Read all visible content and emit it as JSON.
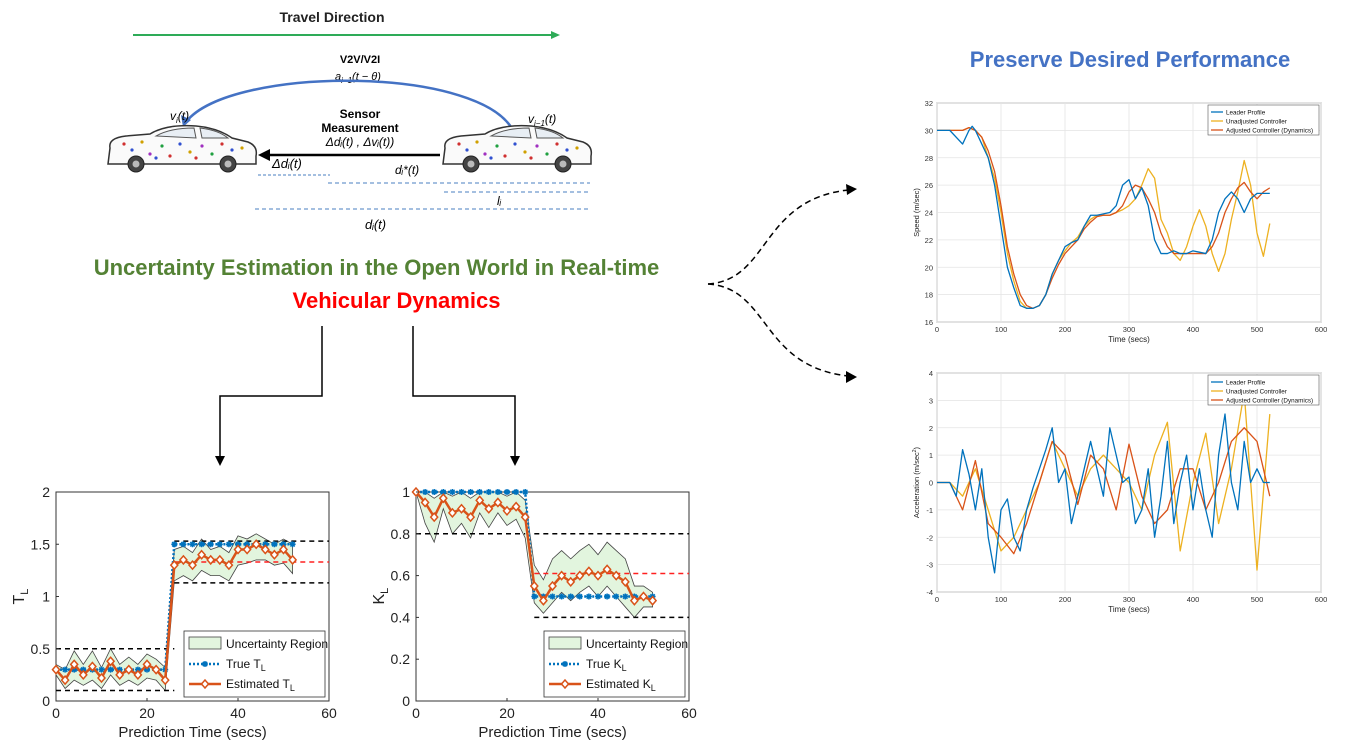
{
  "top": {
    "travel_direction": "Travel Direction",
    "v2v_label": "V2V/V2I",
    "a_label": "a",
    "a_sub": "i−1",
    "a_rest": "(t − θ)",
    "v_left": "v",
    "v_left_sub": "i",
    "v_left_rest": "(t)",
    "v_right": "v",
    "v_right_sub": "i−1",
    "v_right_rest": "(t)",
    "sensor_line1": "Sensor",
    "sensor_line2": "Measurement",
    "sensor_line3": "Δdᵢ(t) , Δvᵢ(t))",
    "delta_d": "Δdᵢ(t)",
    "d_star": "dᵢ*(t)",
    "l_label": "lᵢ",
    "d_label": "dᵢ(t)"
  },
  "headline": {
    "line1": "Uncertainty Estimation in the Open World in Real-time",
    "line2": "Vehicular Dynamics"
  },
  "right_title": "Preserve Desired Performance",
  "colors": {
    "green": "#548235",
    "red": "#ff0000",
    "blue": "#4472c4",
    "leader": "#0072bd",
    "unadjusted": "#edb120",
    "adjusted": "#d95319",
    "true_marker": "#0072bd",
    "estimated": "#d95319",
    "band": "#e2f5de"
  },
  "chart_data": [
    {
      "type": "line",
      "ylabel": "T",
      "ylabel_sub": "L",
      "xlabel": "Prediction Time (secs)",
      "xlim": [
        0,
        60
      ],
      "ylim": [
        0,
        2
      ],
      "xticks": [
        "0",
        "20",
        "40",
        "60"
      ],
      "yticks": [
        "0",
        "0.5",
        "1",
        "1.5",
        "2"
      ],
      "legend": {
        "band": "Uncertainty Region",
        "true": "True T",
        "true_sub": "L",
        "est": "Estimated T",
        "est_sub": "L"
      },
      "x": [
        0,
        2,
        4,
        6,
        8,
        10,
        12,
        14,
        16,
        18,
        20,
        22,
        24,
        26,
        28,
        30,
        32,
        34,
        36,
        38,
        40,
        42,
        44,
        46,
        48,
        50,
        52
      ],
      "true_values": [
        0.3,
        0.3,
        0.3,
        0.3,
        0.3,
        0.3,
        0.3,
        0.3,
        0.3,
        0.3,
        0.3,
        0.3,
        0.3,
        1.5,
        1.5,
        1.5,
        1.5,
        1.5,
        1.5,
        1.5,
        1.5,
        1.5,
        1.5,
        1.5,
        1.5,
        1.5,
        1.5
      ],
      "estimated_values": [
        0.3,
        0.2,
        0.35,
        0.25,
        0.33,
        0.22,
        0.38,
        0.25,
        0.3,
        0.25,
        0.35,
        0.3,
        0.2,
        1.3,
        1.35,
        1.3,
        1.4,
        1.35,
        1.35,
        1.3,
        1.45,
        1.45,
        1.5,
        1.45,
        1.4,
        1.45,
        1.35
      ],
      "band_upper": [
        0.35,
        0.3,
        0.48,
        0.35,
        0.48,
        0.32,
        0.5,
        0.35,
        0.42,
        0.35,
        0.45,
        0.4,
        0.32,
        1.45,
        1.48,
        1.42,
        1.55,
        1.45,
        1.48,
        1.42,
        1.58,
        1.55,
        1.6,
        1.55,
        1.5,
        1.55,
        1.5
      ],
      "band_lower": [
        0.25,
        0.12,
        0.2,
        0.15,
        0.2,
        0.12,
        0.25,
        0.15,
        0.2,
        0.15,
        0.22,
        0.2,
        0.1,
        1.15,
        1.2,
        1.15,
        1.25,
        1.2,
        1.2,
        1.15,
        1.3,
        1.32,
        1.35,
        1.35,
        1.3,
        1.32,
        1.22
      ],
      "hlines_black": [
        0.5,
        0.1,
        1.53,
        1.13
      ],
      "hline_red": 1.33,
      "hline_segments_black": [
        [
          0,
          26,
          0.5
        ],
        [
          0,
          26,
          0.1
        ],
        [
          26,
          60,
          1.53
        ],
        [
          26,
          60,
          1.13
        ]
      ],
      "hline_segments_red": [
        [
          26,
          60,
          1.33
        ]
      ]
    },
    {
      "type": "line",
      "ylabel": "K",
      "ylabel_sub": "L",
      "xlabel": "Prediction Time (secs)",
      "xlim": [
        0,
        60
      ],
      "ylim": [
        0,
        1
      ],
      "xticks": [
        "0",
        "20",
        "40",
        "60"
      ],
      "yticks": [
        "0",
        "0.2",
        "0.4",
        "0.6",
        "0.8",
        "1"
      ],
      "legend": {
        "band": "Uncertainty Region",
        "true": "True K",
        "true_sub": "L",
        "est": "Estimated K",
        "est_sub": "L"
      },
      "x": [
        0,
        2,
        4,
        6,
        8,
        10,
        12,
        14,
        16,
        18,
        20,
        22,
        24,
        26,
        28,
        30,
        32,
        34,
        36,
        38,
        40,
        42,
        44,
        46,
        48,
        50,
        52
      ],
      "true_values": [
        1,
        1,
        1,
        1,
        1,
        1,
        1,
        1,
        1,
        1,
        1,
        1,
        1,
        0.5,
        0.5,
        0.5,
        0.5,
        0.5,
        0.5,
        0.5,
        0.5,
        0.5,
        0.5,
        0.5,
        0.5,
        0.5,
        0.5
      ],
      "estimated_values": [
        1,
        0.95,
        0.88,
        0.97,
        0.9,
        0.92,
        0.88,
        0.96,
        0.92,
        0.95,
        0.91,
        0.93,
        0.88,
        0.55,
        0.48,
        0.55,
        0.6,
        0.57,
        0.6,
        0.62,
        0.6,
        0.63,
        0.6,
        0.57,
        0.48,
        0.5,
        0.48
      ],
      "band_upper": [
        1,
        1,
        0.97,
        1,
        0.98,
        1,
        0.97,
        1,
        1,
        1,
        0.98,
        1,
        0.96,
        0.65,
        0.58,
        0.68,
        0.72,
        0.68,
        0.72,
        0.75,
        0.7,
        0.76,
        0.72,
        0.68,
        0.55,
        0.55,
        0.52
      ],
      "band_lower": [
        1,
        0.85,
        0.76,
        0.92,
        0.8,
        0.85,
        0.78,
        0.9,
        0.83,
        0.9,
        0.84,
        0.87,
        0.78,
        0.47,
        0.42,
        0.47,
        0.52,
        0.48,
        0.52,
        0.55,
        0.5,
        0.55,
        0.5,
        0.45,
        0.4,
        0.45,
        0.45
      ],
      "hline_segments_black": [
        [
          0,
          24,
          0.8
        ],
        [
          26,
          60,
          0.8
        ],
        [
          26,
          60,
          0.4
        ]
      ],
      "hline_segments_red": [
        [
          26,
          60,
          0.61
        ]
      ]
    },
    {
      "type": "line",
      "ylabel": "Speed (m/sec)",
      "xlabel": "Time (secs)",
      "xlim": [
        0,
        600
      ],
      "ylim": [
        16,
        32
      ],
      "xticks": [
        "0",
        "100",
        "200",
        "300",
        "400",
        "500",
        "600"
      ],
      "yticks": [
        "16",
        "18",
        "20",
        "22",
        "24",
        "26",
        "28",
        "30",
        "32"
      ],
      "series": [
        {
          "name": "Leader Profile",
          "x": [
            0,
            20,
            40,
            50,
            55,
            60,
            70,
            80,
            90,
            100,
            110,
            120,
            130,
            140,
            150,
            160,
            170,
            180,
            190,
            200,
            210,
            220,
            230,
            240,
            250,
            260,
            270,
            280,
            290,
            300,
            310,
            320,
            330,
            340,
            350,
            360,
            370,
            380,
            390,
            400,
            410,
            420,
            430,
            440,
            450,
            460,
            470,
            480,
            490,
            500,
            510,
            520
          ],
          "values": [
            30,
            30,
            29,
            30,
            30.3,
            30,
            29,
            28,
            26,
            23,
            20,
            18.5,
            17.2,
            17,
            17,
            17.2,
            18,
            19.5,
            20.5,
            21.5,
            21.8,
            22,
            23,
            23.8,
            23.8,
            23.9,
            24,
            24.5,
            26,
            26.4,
            25,
            25.8,
            24.5,
            22,
            21,
            21,
            21.2,
            21,
            21,
            21.2,
            21.1,
            21,
            22,
            24,
            25,
            25.5,
            25,
            24,
            25,
            25.4,
            25.4,
            25.4
          ]
        },
        {
          "name": "Unadjusted Controller",
          "x": [
            0,
            20,
            40,
            50,
            60,
            70,
            80,
            90,
            100,
            110,
            120,
            130,
            140,
            150,
            160,
            170,
            180,
            190,
            200,
            210,
            220,
            230,
            240,
            250,
            260,
            270,
            280,
            290,
            300,
            310,
            320,
            330,
            340,
            350,
            360,
            370,
            380,
            390,
            400,
            410,
            420,
            430,
            440,
            450,
            460,
            470,
            480,
            490,
            500,
            510,
            520
          ],
          "values": [
            30,
            30,
            30,
            30.2,
            30,
            29.5,
            28,
            26.5,
            24,
            21,
            19,
            17.5,
            17,
            17,
            17.2,
            18,
            19.5,
            20.5,
            21.2,
            21.8,
            22.2,
            23,
            23.5,
            23.8,
            23.8,
            23.8,
            24,
            24.2,
            24.5,
            25,
            26,
            27.2,
            26.5,
            23.5,
            22.5,
            21,
            20.5,
            21.5,
            23,
            24.2,
            23,
            21,
            19.7,
            21,
            23.5,
            25.5,
            27.8,
            26,
            22.5,
            20.8,
            23.2
          ]
        },
        {
          "name": "Adjusted Controller (Dynamics)",
          "x": [
            0,
            20,
            40,
            50,
            60,
            70,
            80,
            90,
            100,
            110,
            120,
            130,
            140,
            150,
            160,
            170,
            180,
            190,
            200,
            210,
            220,
            230,
            240,
            250,
            260,
            270,
            280,
            290,
            300,
            310,
            320,
            330,
            340,
            350,
            360,
            370,
            380,
            390,
            400,
            410,
            420,
            430,
            440,
            450,
            460,
            470,
            480,
            490,
            500,
            510,
            520
          ],
          "values": [
            30,
            30,
            30,
            30.2,
            30,
            29.5,
            28.5,
            27,
            24.5,
            21.5,
            19.5,
            18,
            17.2,
            17,
            17.2,
            18,
            19.2,
            20.2,
            21,
            21.5,
            22,
            22.8,
            23.3,
            23.7,
            23.8,
            23.8,
            24,
            24.5,
            25.5,
            26,
            25.8,
            25,
            24,
            22.5,
            21.5,
            21,
            21,
            21,
            21,
            21,
            21,
            21.5,
            22.5,
            24,
            25,
            25.8,
            26.2,
            25.5,
            25,
            25.5,
            25.8
          ]
        }
      ]
    },
    {
      "type": "line",
      "ylabel": "Acceleration (m/sec",
      "ylabel_sup": "2",
      "ylabel_end": ")",
      "xlabel": "Time (secs)",
      "xlim": [
        0,
        600
      ],
      "ylim": [
        -4,
        4
      ],
      "xticks": [
        "0",
        "100",
        "200",
        "300",
        "400",
        "500",
        "600"
      ],
      "yticks": [
        "-4",
        "-3",
        "-2",
        "-1",
        "0",
        "1",
        "2",
        "3",
        "4"
      ],
      "series": [
        {
          "name": "Leader Profile",
          "x": [
            0,
            10,
            20,
            30,
            40,
            50,
            60,
            70,
            80,
            90,
            100,
            110,
            120,
            130,
            140,
            150,
            160,
            170,
            180,
            190,
            200,
            210,
            220,
            230,
            240,
            250,
            260,
            270,
            280,
            290,
            300,
            310,
            320,
            330,
            340,
            350,
            360,
            370,
            380,
            390,
            400,
            410,
            420,
            430,
            440,
            450,
            460,
            470,
            480,
            490,
            500,
            510,
            520
          ],
          "values": [
            0,
            0,
            0,
            -0.5,
            1.2,
            0.3,
            -1,
            0.5,
            -2,
            -3.3,
            -1,
            -0.6,
            -2,
            -2.5,
            -1,
            -0.2,
            0.5,
            1.2,
            2,
            0,
            0.5,
            -1.5,
            -0.5,
            0.5,
            1.5,
            0.5,
            -0.5,
            2,
            1,
            0,
            0.2,
            -1.5,
            -1,
            0.5,
            -2,
            -0.5,
            1.5,
            -1.5,
            0,
            1,
            -1,
            0.5,
            -1,
            -2,
            1,
            2.5,
            0,
            -1,
            1.5,
            0,
            0.5,
            0,
            0
          ]
        },
        {
          "name": "Unadjusted Controller",
          "x": [
            0,
            20,
            40,
            60,
            80,
            100,
            120,
            140,
            160,
            180,
            200,
            220,
            240,
            260,
            280,
            300,
            320,
            340,
            360,
            380,
            400,
            420,
            440,
            460,
            480,
            500,
            520
          ],
          "values": [
            0,
            0,
            -0.5,
            0.5,
            -1,
            -2.5,
            -2,
            -1,
            0,
            1.5,
            0.5,
            -0.5,
            0.5,
            1,
            0.5,
            0,
            -1,
            1,
            2.2,
            -2.5,
            0,
            1.8,
            -1.5,
            0.5,
            3.3,
            -3.2,
            2.5
          ]
        },
        {
          "name": "Adjusted Controller (Dynamics)",
          "x": [
            0,
            20,
            40,
            60,
            80,
            100,
            120,
            140,
            160,
            180,
            200,
            220,
            240,
            260,
            280,
            300,
            320,
            340,
            360,
            380,
            400,
            420,
            440,
            460,
            480,
            500,
            520
          ],
          "values": [
            0,
            0,
            -1,
            0.8,
            -1.5,
            -2,
            -2.6,
            -1.5,
            0,
            1.5,
            1,
            -0.8,
            1,
            0.5,
            -1,
            1.4,
            -0.5,
            -1.5,
            -1,
            0.5,
            0.5,
            -1,
            0,
            1.5,
            2,
            1.5,
            -0.5
          ]
        }
      ]
    }
  ]
}
